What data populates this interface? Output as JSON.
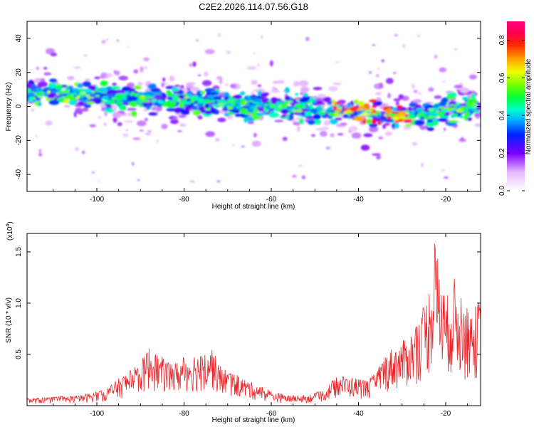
{
  "title": "C2E2.2026.114.07.56.G18",
  "chart_data": [
    {
      "type": "heatmap",
      "xlabel": "Height of straight line (km)",
      "ylabel": "Frequency (Hz)",
      "xlim": [
        -116,
        -12
      ],
      "ylim": [
        -50,
        50
      ],
      "xticks": [
        -100,
        -80,
        -60,
        -40,
        -20
      ],
      "yticks": [
        -40,
        -20,
        0,
        20,
        40
      ],
      "colorbar": {
        "label": "Normalized spectral amplitude",
        "range": [
          0,
          0.9
        ],
        "ticks": [
          0.0,
          0.2,
          0.4,
          0.6,
          0.8
        ]
      },
      "ridge": {
        "description_points_x": [
          -115,
          -100,
          -80,
          -60,
          -40,
          -30,
          -20,
          -12
        ],
        "description_points_y": [
          9,
          6,
          3,
          0,
          -3,
          -6,
          -2,
          0
        ]
      }
    },
    {
      "type": "line",
      "xlabel": "Height of straight line (km)",
      "ylabel": "SNR (10 * v/v)",
      "exponent_label": "(x10",
      "exponent_power": "4",
      "exponent_close": ")",
      "xlim": [
        -116,
        -12
      ],
      "ylim": [
        0,
        1.68
      ],
      "xticks": [
        -100,
        -80,
        -60,
        -40,
        -20
      ],
      "yticks": [
        0.5,
        1.0,
        1.5
      ],
      "ytick_labels": [
        "0.5",
        "1.0",
        "1.5"
      ],
      "color": "#e8262b",
      "series": [
        {
          "name": "SNR",
          "envelope_x": [
            -116,
            -104,
            -98,
            -94,
            -90,
            -88,
            -86,
            -84,
            -82,
            -80,
            -78,
            -76,
            -74,
            -72,
            -68,
            -64,
            -60,
            -56,
            -52,
            -48,
            -46,
            -44,
            -42,
            -40,
            -38,
            -36,
            -34,
            -32,
            -30,
            -28,
            -26,
            -24,
            -22.5,
            -21,
            -20,
            -18,
            -16,
            -14,
            -12
          ],
          "envelope_y": [
            0.07,
            0.1,
            0.16,
            0.3,
            0.42,
            0.58,
            0.5,
            0.45,
            0.42,
            0.48,
            0.52,
            0.5,
            0.62,
            0.4,
            0.3,
            0.22,
            0.14,
            0.1,
            0.1,
            0.15,
            0.25,
            0.3,
            0.28,
            0.27,
            0.25,
            0.32,
            0.5,
            0.58,
            0.62,
            0.72,
            0.88,
            1.1,
            1.62,
            1.3,
            1.05,
            1.25,
            1.0,
            0.9,
            1.08
          ]
        }
      ]
    }
  ]
}
